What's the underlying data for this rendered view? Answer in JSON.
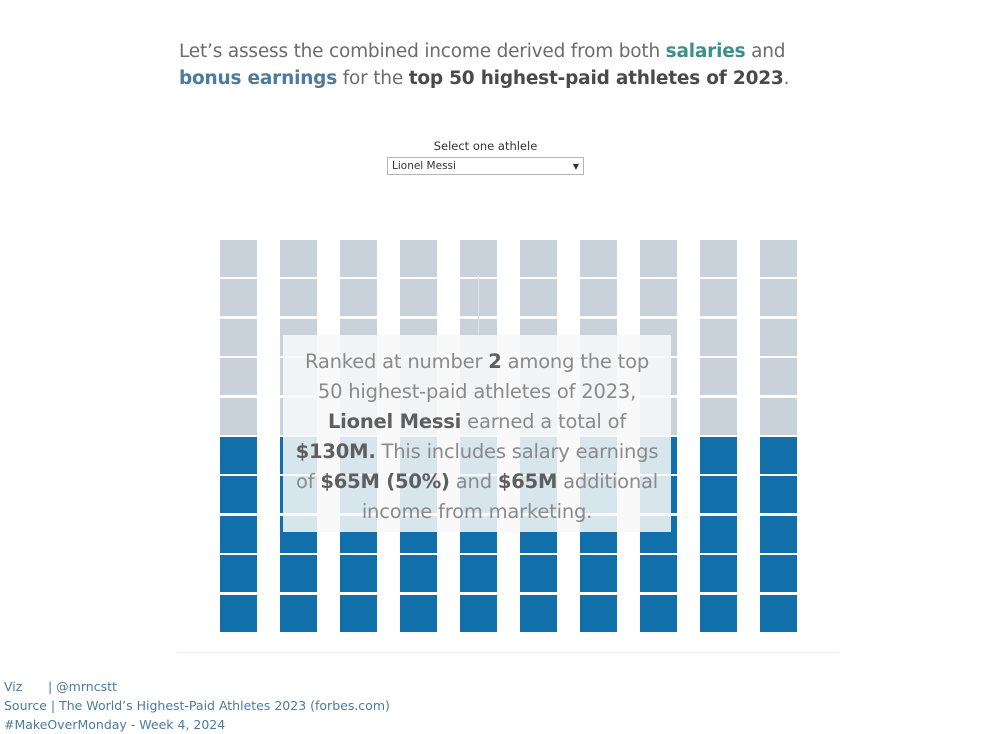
{
  "headline": {
    "part1": "Let’s assess the combined income derived from both ",
    "salaries": "salaries",
    "and": " and ",
    "bonus": "bonus earnings",
    "for_the": " for the ",
    "strong": "top 50 highest-paid athletes of 2023",
    "end": "."
  },
  "selector": {
    "label": "Select one athlele",
    "value": "Lionel Messi",
    "arrow_icon": "▼"
  },
  "waffle": {
    "columns": 10,
    "rows": 10,
    "salary_percent": 50,
    "colors": {
      "salary": "#1170aa",
      "bonus": "#c9d1da"
    }
  },
  "summary": {
    "t1": "Ranked at number ",
    "rank": "2",
    "t2": " among the top 50 highest-paid athletes of 2023, ",
    "athlete": "Lionel Messi",
    "t3": " earned a total of ",
    "total": "$130M.",
    "t4": " This includes salary earnings of ",
    "salary": "$65M (50%)",
    "t5": " and ",
    "marketing": "$65M",
    "t6": " additional income from marketing."
  },
  "footer": {
    "viz_label": "Viz",
    "viz_handle": "| @mrncstt",
    "source": "Source | The World’s Highest-Paid Athletes 2023 (forbes.com)",
    "tag": "#MakeOverMonday - Week 4, 2024"
  },
  "colors": {
    "salaries_accent": "#3d8f8c",
    "bonus_accent": "#4c7aa3",
    "footer_text": "#4c7aa3"
  }
}
